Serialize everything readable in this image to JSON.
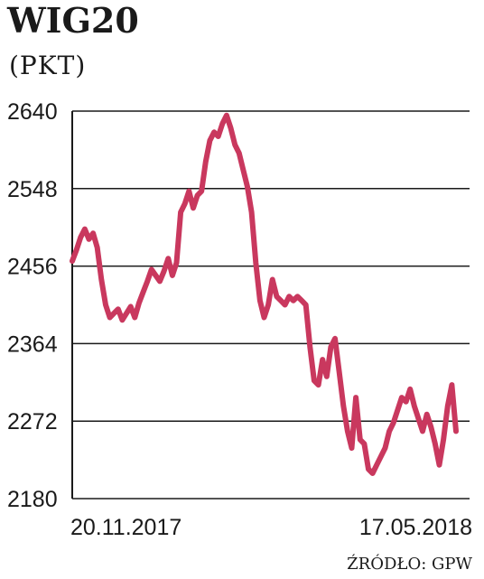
{
  "chart_data": {
    "type": "line",
    "title": "WIG20",
    "subtitle": "(PKT)",
    "source": "ŹRÓDŁO: GPW",
    "x_start_label": "20.11.2017",
    "x_end_label": "17.05.2018",
    "ylim": [
      2180,
      2640
    ],
    "yticks": [
      2180,
      2272,
      2364,
      2456,
      2548,
      2640
    ],
    "grid": true,
    "line_color": "#c9385e",
    "series": [
      {
        "values": [
          2462,
          2475,
          2490,
          2500,
          2488,
          2495,
          2478,
          2440,
          2410,
          2395,
          2400,
          2405,
          2392,
          2400,
          2408,
          2395,
          2412,
          2425,
          2438,
          2452,
          2445,
          2438,
          2450,
          2465,
          2445,
          2460,
          2520,
          2530,
          2545,
          2525,
          2540,
          2545,
          2580,
          2605,
          2615,
          2610,
          2625,
          2635,
          2620,
          2600,
          2590,
          2570,
          2550,
          2520,
          2460,
          2415,
          2395,
          2410,
          2440,
          2420,
          2415,
          2410,
          2420,
          2415,
          2420,
          2415,
          2410,
          2360,
          2320,
          2315,
          2345,
          2325,
          2360,
          2370,
          2330,
          2290,
          2260,
          2240,
          2300,
          2250,
          2245,
          2215,
          2210,
          2220,
          2230,
          2240,
          2260,
          2270,
          2285,
          2300,
          2295,
          2310,
          2290,
          2275,
          2260,
          2280,
          2265,
          2245,
          2220,
          2250,
          2290,
          2315,
          2260
        ]
      }
    ]
  }
}
